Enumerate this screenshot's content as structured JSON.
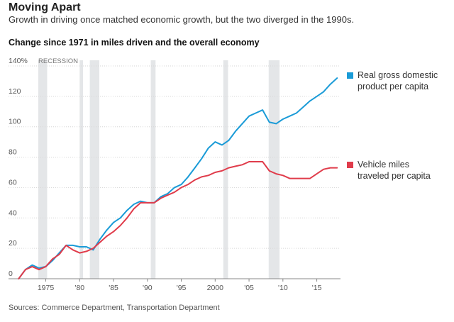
{
  "header": {
    "title": "Moving Apart",
    "subtitle": "Growth in driving once matched economic growth, but the two diverged in the 1990s."
  },
  "footer": {
    "source": "Sources: Commerce Department, Transportation Department"
  },
  "colors": {
    "gdp": "#1a9bd7",
    "vmt": "#e03c4b",
    "recession": "#e4e6e8",
    "grid": "#d6d6d6",
    "axis": "#999999"
  },
  "chart_data": {
    "type": "line",
    "title": "Change since 1971 in miles driven and the overall economy",
    "xlabel": "",
    "ylabel": "",
    "xlim": [
      1969.5,
      2018.5
    ],
    "ylim": [
      0,
      140
    ],
    "y_ticks": [
      0,
      20,
      40,
      60,
      80,
      100,
      120,
      140
    ],
    "y_tick_labels": [
      "0",
      "20",
      "40",
      "60",
      "80",
      "100",
      "120",
      "140%"
    ],
    "x_ticks": [
      1975,
      1980,
      1985,
      1990,
      1995,
      2000,
      2005,
      2010,
      2015
    ],
    "x_tick_labels": [
      "1975",
      "'80",
      "'85",
      "'90",
      "'95",
      "2000",
      "'05",
      "'10",
      "'15"
    ],
    "grid": "horizontal",
    "legend_position": "right",
    "recession_label": "RECESSION",
    "recessions": [
      [
        1973.9,
        1975.2
      ],
      [
        1980.0,
        1980.5
      ],
      [
        1981.5,
        1982.9
      ],
      [
        1990.5,
        1991.2
      ],
      [
        2001.2,
        2001.9
      ],
      [
        2007.9,
        2009.5
      ]
    ],
    "x": [
      1971,
      1972,
      1973,
      1974,
      1975,
      1976,
      1977,
      1978,
      1979,
      1980,
      1981,
      1982,
      1983,
      1984,
      1985,
      1986,
      1987,
      1988,
      1989,
      1990,
      1991,
      1992,
      1993,
      1994,
      1995,
      1996,
      1997,
      1998,
      1999,
      2000,
      2001,
      2002,
      2003,
      2004,
      2005,
      2006,
      2007,
      2008,
      2009,
      2010,
      2011,
      2012,
      2013,
      2014,
      2015,
      2016,
      2017,
      2018
    ],
    "series": [
      {
        "name": "Real gross domestic product per capita",
        "color": "#1a9bd7",
        "values": [
          0,
          6,
          9,
          7,
          8,
          12,
          17,
          22,
          22,
          21,
          21,
          19,
          26,
          32,
          37,
          40,
          45,
          49,
          51,
          50,
          50,
          54,
          56,
          60,
          62,
          67,
          73,
          79,
          86,
          90,
          88,
          91,
          97,
          102,
          107,
          109,
          111,
          103,
          102,
          105,
          107,
          109,
          113,
          117,
          120,
          123,
          128,
          132
        ]
      },
      {
        "name": "Vehicle miles traveled per capita",
        "color": "#e03c4b",
        "values": [
          0,
          6,
          8,
          6,
          8,
          13,
          16,
          22,
          19,
          17,
          18,
          20,
          24,
          28,
          31,
          35,
          40,
          46,
          50,
          50,
          50,
          53,
          55,
          57,
          60,
          62,
          65,
          67,
          68,
          70,
          71,
          73,
          74,
          75,
          77,
          77,
          77,
          71,
          69,
          68,
          66,
          66,
          66,
          66,
          69,
          72,
          73,
          73
        ]
      }
    ]
  }
}
